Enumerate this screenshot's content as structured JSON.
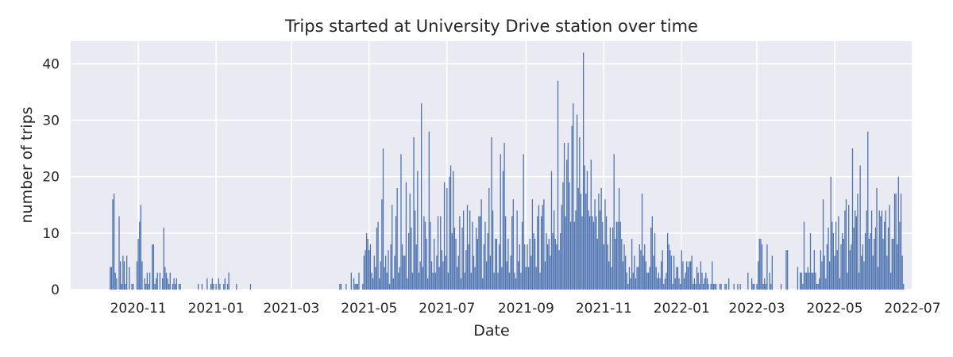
{
  "chart_data": {
    "type": "bar",
    "title": "Trips started at University Drive station over time",
    "xlabel": "Date",
    "ylabel": "number of trips",
    "x_range": [
      "2020-09-09",
      "2022-07-01"
    ],
    "ylim": [
      0,
      44
    ],
    "grid": true,
    "bar_color": "#4c72b0",
    "background_color": "#eaeaf2",
    "grid_color": "#ffffff",
    "x_ticks": [
      {
        "date": "2020-11-01",
        "label": "2020-11"
      },
      {
        "date": "2021-01-01",
        "label": "2021-01"
      },
      {
        "date": "2021-03-01",
        "label": "2021-03"
      },
      {
        "date": "2021-05-01",
        "label": "2021-05"
      },
      {
        "date": "2021-07-01",
        "label": "2021-07"
      },
      {
        "date": "2021-09-01",
        "label": "2021-09"
      },
      {
        "date": "2021-11-01",
        "label": "2021-11"
      },
      {
        "date": "2022-01-01",
        "label": "2022-01"
      },
      {
        "date": "2022-03-01",
        "label": "2022-03"
      },
      {
        "date": "2022-05-01",
        "label": "2022-05"
      },
      {
        "date": "2022-07-01",
        "label": "2022-07"
      }
    ],
    "y_ticks": [
      0,
      10,
      20,
      30,
      40
    ],
    "start_date": "2020-10-10",
    "values": [
      4,
      4,
      16,
      17,
      3,
      2,
      0,
      13,
      5,
      1,
      6,
      5,
      1,
      6,
      0,
      4,
      0,
      1,
      1,
      0,
      0,
      5,
      9,
      12,
      15,
      5,
      0,
      2,
      1,
      3,
      1,
      3,
      0,
      8,
      8,
      1,
      2,
      3,
      0,
      3,
      0,
      2,
      11,
      4,
      3,
      2,
      1,
      3,
      0,
      1,
      2,
      1,
      2,
      0,
      1,
      1,
      0,
      0,
      0,
      0,
      0,
      0,
      0,
      0,
      0,
      0,
      0,
      0,
      0,
      1,
      0,
      0,
      1,
      0,
      0,
      0,
      2,
      0,
      0,
      1,
      2,
      1,
      0,
      1,
      0,
      2,
      1,
      0,
      0,
      1,
      2,
      0,
      1,
      3,
      0,
      0,
      0,
      0,
      0,
      1,
      0,
      0,
      0,
      0,
      0,
      0,
      0,
      0,
      0,
      0,
      1,
      0,
      0,
      0,
      0,
      0,
      0,
      0,
      0,
      0,
      0,
      0,
      0,
      0,
      0,
      0,
      0,
      0,
      0,
      0,
      0,
      0,
      0,
      0,
      0,
      0,
      0,
      0,
      0,
      0,
      0,
      0,
      0,
      0,
      0,
      0,
      0,
      0,
      0,
      0,
      0,
      0,
      0,
      0,
      0,
      0,
      0,
      0,
      0,
      0,
      0,
      0,
      0,
      0,
      0,
      0,
      0,
      0,
      0,
      0,
      0,
      0,
      0,
      0,
      0,
      0,
      0,
      0,
      0,
      0,
      1,
      1,
      0,
      0,
      0,
      1,
      0,
      0,
      0,
      3,
      0,
      2,
      1,
      1,
      1,
      3,
      0,
      0,
      1,
      6,
      7,
      10,
      9,
      7,
      8,
      3,
      2,
      6,
      4,
      11,
      12,
      2,
      5,
      16,
      25,
      4,
      6,
      3,
      7,
      1,
      8,
      15,
      2,
      6,
      13,
      18,
      3,
      4,
      24,
      8,
      6,
      6,
      19,
      2,
      10,
      17,
      11,
      3,
      27,
      14,
      8,
      21,
      3,
      5,
      33,
      4,
      13,
      12,
      9,
      2,
      28,
      12,
      5,
      3,
      9,
      3,
      6,
      13,
      4,
      13,
      7,
      5,
      19,
      6,
      18,
      3,
      20,
      22,
      10,
      21,
      11,
      9,
      4,
      6,
      13,
      2,
      11,
      14,
      3,
      7,
      15,
      8,
      14,
      3,
      12,
      6,
      4,
      11,
      9,
      13,
      13,
      16,
      2,
      8,
      12,
      5,
      10,
      18,
      6,
      27,
      14,
      3,
      9,
      9,
      3,
      8,
      24,
      4,
      21,
      26,
      13,
      5,
      9,
      3,
      6,
      13,
      16,
      3,
      2,
      14,
      5,
      8,
      3,
      12,
      24,
      8,
      4,
      8,
      4,
      9,
      6,
      16,
      10,
      9,
      4,
      13,
      15,
      3,
      13,
      15,
      16,
      5,
      10,
      8,
      9,
      6,
      21,
      10,
      14,
      9,
      8,
      37,
      7,
      10,
      15,
      19,
      26,
      13,
      23,
      26,
      19,
      12,
      29,
      33,
      12,
      14,
      31,
      18,
      27,
      17,
      13,
      42,
      22,
      17,
      21,
      14,
      13,
      23,
      13,
      12,
      16,
      13,
      9,
      17,
      14,
      18,
      12,
      8,
      16,
      13,
      8,
      5,
      11,
      4,
      11,
      24,
      9,
      12,
      12,
      18,
      12,
      9,
      5,
      8,
      6,
      3,
      1,
      4,
      2,
      9,
      3,
      6,
      2,
      4,
      4,
      8,
      7,
      17,
      6,
      8,
      5,
      3,
      3,
      4,
      11,
      13,
      6,
      10,
      4,
      2,
      3,
      2,
      5,
      7,
      1,
      2,
      3,
      10,
      8,
      7,
      6,
      1,
      6,
      2,
      4,
      4,
      2,
      1,
      7,
      5,
      2,
      3,
      5,
      4,
      5,
      5,
      6,
      1,
      2,
      1,
      4,
      3,
      1,
      5,
      3,
      1,
      2,
      3,
      2,
      1,
      0,
      1,
      5,
      1,
      1,
      1,
      0,
      0,
      1,
      1,
      0,
      0,
      1,
      1,
      0,
      2,
      0,
      0,
      0,
      1,
      0,
      0,
      1,
      0,
      1,
      0,
      0,
      0,
      0,
      0,
      3,
      0,
      0,
      2,
      1,
      1,
      0,
      1,
      5,
      9,
      9,
      8,
      1,
      2,
      1,
      8,
      0,
      3,
      1,
      6,
      0,
      0,
      0,
      0,
      0,
      0,
      1,
      0,
      0,
      0,
      7,
      7,
      0,
      0,
      0,
      0,
      0,
      0,
      0,
      4,
      0,
      3,
      3,
      1,
      12,
      3,
      3,
      4,
      3,
      10,
      3,
      3,
      7,
      3,
      1,
      1,
      2,
      7,
      5,
      16,
      6,
      2,
      8,
      11,
      5,
      20,
      12,
      10,
      6,
      12,
      7,
      13,
      2,
      8,
      10,
      9,
      14,
      16,
      3,
      15,
      7,
      8,
      25,
      11,
      14,
      13,
      17,
      3,
      22,
      6,
      8,
      5,
      10,
      14,
      28,
      9,
      10,
      14,
      6,
      9,
      11,
      18,
      4,
      14,
      13,
      14,
      9,
      12,
      14,
      6,
      11,
      15,
      3,
      9,
      9,
      17,
      17,
      8,
      20,
      12,
      17,
      6,
      1
    ]
  }
}
